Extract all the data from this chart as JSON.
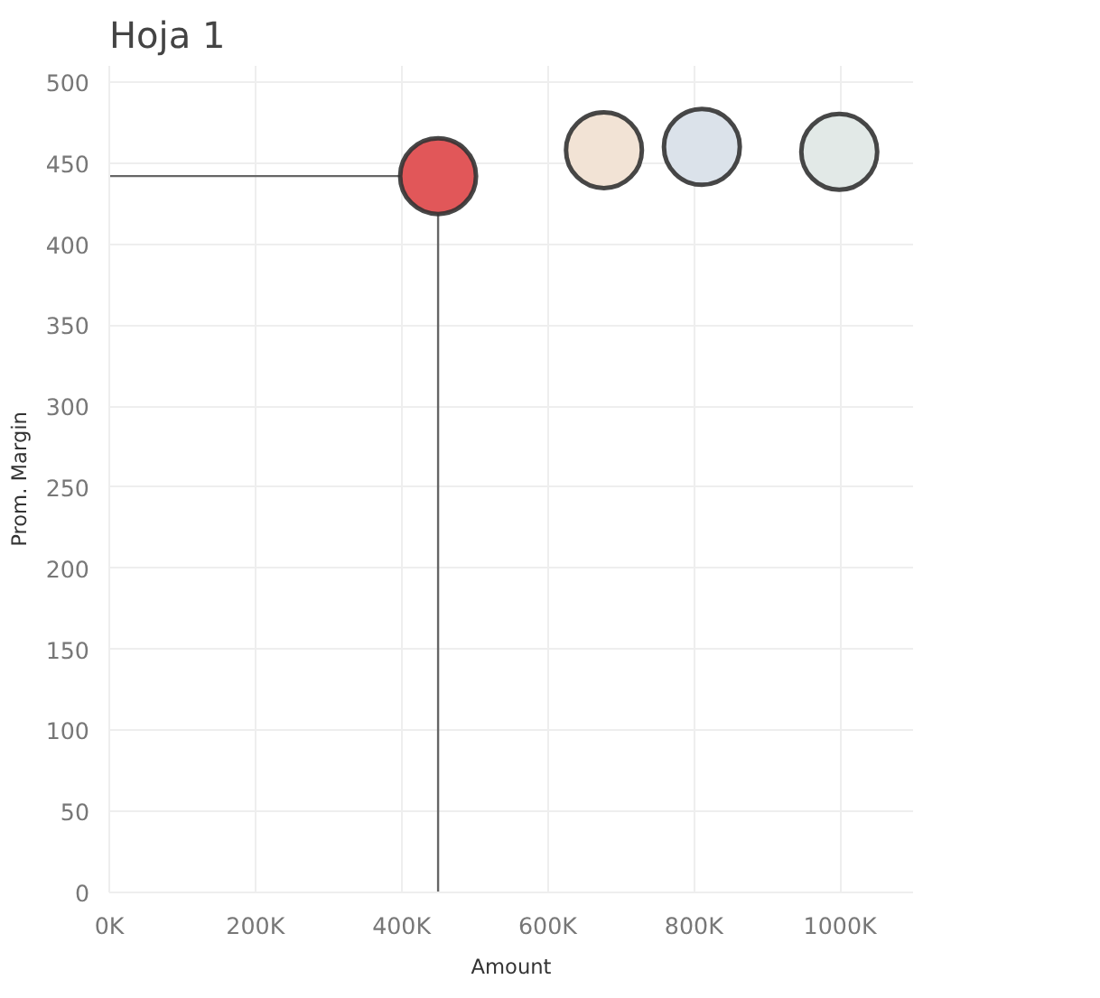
{
  "chart_data": {
    "type": "bubble",
    "title": "Hoja 1",
    "xlabel": "Amount",
    "ylabel": "Prom. Margin",
    "x": [
      450000,
      677000,
      811000,
      999000
    ],
    "values": [
      442,
      458,
      460,
      457
    ],
    "sizes": [
      1,
      1,
      1,
      1
    ],
    "colors": [
      "#e15759",
      "#f2e3d5",
      "#dbe2ea",
      "#e2e9e7"
    ],
    "xlim": [
      0,
      1100000
    ],
    "ylim": [
      0,
      510
    ],
    "xticks": [
      {
        "value": 0,
        "label": "0K"
      },
      {
        "value": 200000,
        "label": "200K"
      },
      {
        "value": 400000,
        "label": "400K"
      },
      {
        "value": 600000,
        "label": "600K"
      },
      {
        "value": 800000,
        "label": "800K"
      },
      {
        "value": 1000000,
        "label": "1000K"
      }
    ],
    "yticks": [
      0,
      50,
      100,
      150,
      200,
      250,
      300,
      350,
      400,
      450,
      500
    ],
    "ref_lines": [
      {
        "axis": "x",
        "value": 450000,
        "color": "#666666"
      },
      {
        "axis": "y",
        "value": 442,
        "color": "#666666"
      }
    ],
    "grid": true
  }
}
